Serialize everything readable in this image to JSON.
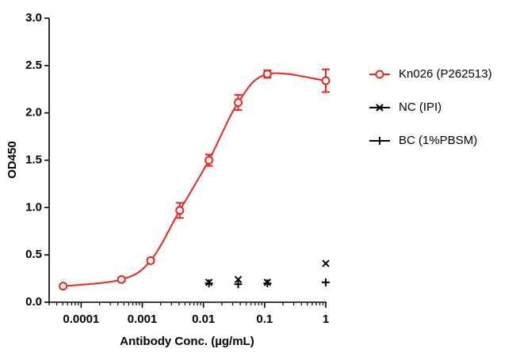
{
  "chart_data": {
    "type": "scatter",
    "x_label": "Antibody Conc. (µg/mL)",
    "y_label": "OD450",
    "x_log": true,
    "xlim": [
      3e-05,
      1
    ],
    "xticks": [
      0.0001,
      0.001,
      0.01,
      0.1,
      1
    ],
    "ylim": [
      0,
      3
    ],
    "yticks": [
      {
        "value": 0,
        "label": "0.0"
      },
      {
        "value": 0.5,
        "label": "0.5"
      },
      {
        "value": 1,
        "label": "1.0"
      },
      {
        "value": 1.5,
        "label": "1.5"
      },
      {
        "value": 2,
        "label": "2.0"
      },
      {
        "value": 2.5,
        "label": "2.5"
      },
      {
        "value": 3,
        "label": "3.0"
      }
    ],
    "legend": "right",
    "series": [
      {
        "name": "Kn026 (P262513)",
        "color": "#e8261c",
        "marker": "circle",
        "line": true,
        "x": [
          5.08e-05,
          0.000457,
          0.00137,
          0.0041,
          0.0123,
          0.037,
          0.111,
          1
        ],
        "values": [
          0.17,
          0.24,
          0.44,
          0.97,
          1.5,
          2.11,
          2.41,
          2.34
        ],
        "errors": [
          0.01,
          0.02,
          0.02,
          0.08,
          0.06,
          0.08,
          0.04,
          0.12
        ]
      },
      {
        "name": "NC (IPI)",
        "color": "#000000",
        "marker": "x",
        "x": [
          0.0123,
          0.037,
          0.111,
          1
        ],
        "values": [
          0.21,
          0.24,
          0.21,
          0.41
        ]
      },
      {
        "name": "BC (1%PBSM)",
        "color": "#000000",
        "marker": "plus",
        "x": [
          0.0123,
          0.037,
          0.111,
          1
        ],
        "values": [
          0.2,
          0.19,
          0.2,
          0.21
        ]
      }
    ]
  }
}
